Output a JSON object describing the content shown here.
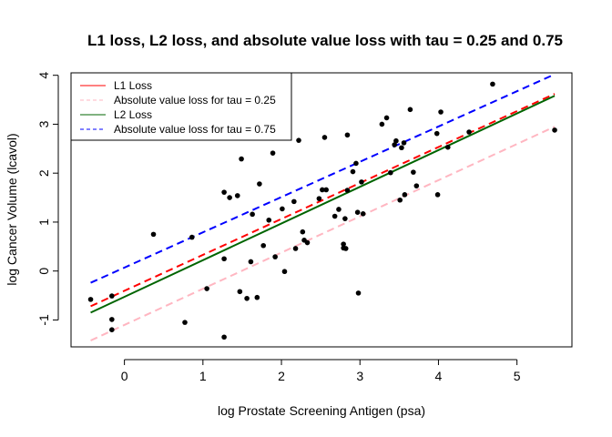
{
  "chart_data": {
    "type": "scatter",
    "title": "L1 loss, L2 loss, and absolute value loss with tau = 0.25 and 0.75",
    "xlabel": "log Prostate Screening Antigen (psa)",
    "ylabel": "log Cancer Volume (lcavol)",
    "xlim": [
      -0.68,
      5.7
    ],
    "ylim": [
      -1.55,
      4.05
    ],
    "xticks": [
      0,
      1,
      2,
      3,
      4,
      5
    ],
    "yticks": [
      -1,
      0,
      1,
      2,
      3,
      4
    ],
    "grid": false,
    "legend_position": "top-left",
    "points": {
      "color": "#000000",
      "x": [
        -0.43,
        -0.16,
        -0.16,
        -0.16,
        0.37,
        0.77,
        0.86,
        1.05,
        1.27,
        1.27,
        1.27,
        1.34,
        1.44,
        1.47,
        1.49,
        1.56,
        1.61,
        1.63,
        1.69,
        1.72,
        1.77,
        1.84,
        1.89,
        1.92,
        2.01,
        2.04,
        2.16,
        2.18,
        2.22,
        2.27,
        2.29,
        2.33,
        2.48,
        2.52,
        2.55,
        2.57,
        2.68,
        2.73,
        2.79,
        2.79,
        2.81,
        2.82,
        2.84,
        2.84,
        2.91,
        2.95,
        2.97,
        2.98,
        3.02,
        3.04,
        3.28,
        3.34,
        3.39,
        3.44,
        3.46,
        3.51,
        3.53,
        3.56,
        3.57,
        3.64,
        3.68,
        3.72,
        3.98,
        3.99,
        4.03,
        4.12,
        4.39,
        4.69,
        5.48
      ],
      "y": [
        -0.58,
        -0.51,
        -0.99,
        -1.2,
        0.75,
        -1.05,
        0.69,
        -0.36,
        1.61,
        0.25,
        -1.35,
        1.5,
        1.54,
        -0.42,
        2.29,
        -0.56,
        0.19,
        1.16,
        -0.54,
        1.78,
        0.52,
        1.04,
        2.41,
        0.29,
        1.27,
        -0.01,
        1.42,
        0.46,
        2.67,
        0.8,
        0.63,
        0.58,
        1.48,
        1.66,
        2.73,
        1.66,
        1.12,
        1.26,
        0.55,
        0.47,
        1.07,
        0.46,
        1.65,
        2.78,
        2.03,
        2.2,
        1.2,
        -0.45,
        1.82,
        1.17,
        3.0,
        3.13,
        2.01,
        2.58,
        2.66,
        1.45,
        2.52,
        2.62,
        1.56,
        3.3,
        2.02,
        1.74,
        2.81,
        1.56,
        3.25,
        2.53,
        2.84,
        3.82,
        2.88
      ]
    },
    "series": [
      {
        "name": "L1 Loss",
        "style": "dashed",
        "color": "#ff0000",
        "x": [
          -0.43,
          5.48
        ],
        "y": [
          -0.72,
          3.62
        ]
      },
      {
        "name": "Absolute value loss for tau = 0.25",
        "style": "dashed",
        "color": "#ffb6c1",
        "x": [
          -0.43,
          5.48
        ],
        "y": [
          -1.42,
          2.95
        ]
      },
      {
        "name": "L2 Loss",
        "style": "solid",
        "color": "#006400",
        "x": [
          -0.43,
          5.48
        ],
        "y": [
          -0.85,
          3.58
        ]
      },
      {
        "name": "Absolute value loss for tau = 0.75",
        "style": "dashed",
        "color": "#0000ff",
        "x": [
          -0.43,
          5.48
        ],
        "y": [
          -0.24,
          4.02
        ]
      }
    ],
    "legend": [
      {
        "label": "L1 Loss",
        "color": "#ff0000",
        "style": "solid"
      },
      {
        "label": "Absolute value loss for tau = 0.25",
        "color": "#ffb6c1",
        "style": "dashed"
      },
      {
        "label": "L2 Loss",
        "color": "#006400",
        "style": "solid"
      },
      {
        "label": "Absolute value loss for tau = 0.75",
        "color": "#0000ff",
        "style": "dashed"
      }
    ]
  }
}
